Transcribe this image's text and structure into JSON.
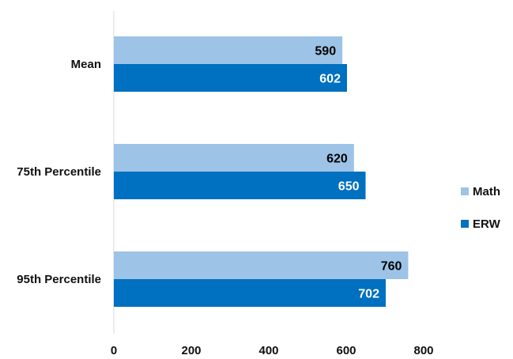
{
  "chart_data": {
    "type": "bar",
    "orientation": "horizontal",
    "categories": [
      "Mean",
      "75th Percentile",
      "95th Percentile"
    ],
    "series": [
      {
        "name": "Math",
        "values": [
          590,
          620,
          760
        ],
        "color": "#9dc3e6",
        "label_color": "#000000"
      },
      {
        "name": "ERW",
        "values": [
          602,
          650,
          702
        ],
        "color": "#0070c0",
        "label_color": "#ffffff"
      }
    ],
    "xlim": [
      0,
      800
    ],
    "xticks": [
      0,
      200,
      400,
      600,
      800
    ],
    "grid": false,
    "legend_position": "right",
    "title": "",
    "xlabel": "",
    "ylabel": ""
  }
}
